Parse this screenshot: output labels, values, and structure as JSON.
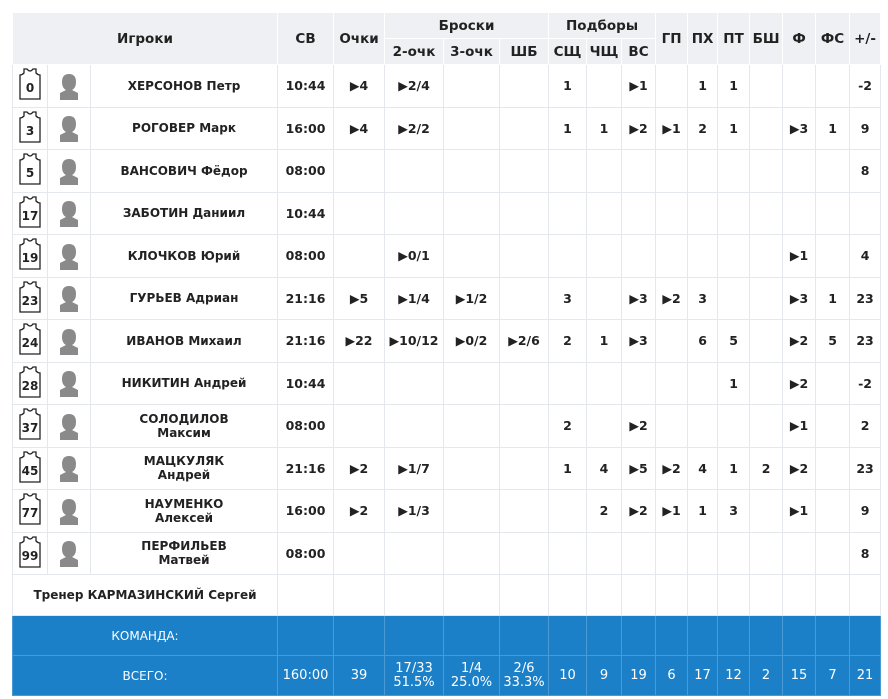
{
  "header": {
    "players": "Игроки",
    "time": "СВ",
    "points": "Очки",
    "shots": "Броски",
    "shots_sub": [
      "2-очк",
      "3-очк",
      "ШБ"
    ],
    "rebounds": "Подборы",
    "rebounds_sub": [
      "СЩ",
      "ЧЩ",
      "ВС"
    ],
    "other": [
      "ГП",
      "ПХ",
      "ПТ",
      "БШ",
      "Ф",
      "ФС",
      "+/-"
    ]
  },
  "rows": [
    {
      "number": "0",
      "name": [
        "ХЕРСОНОВ Петр"
      ],
      "cells": [
        "10:44",
        "▶4",
        "▶2/4",
        null,
        null,
        "1",
        null,
        "▶1",
        null,
        "1",
        "1",
        null,
        null,
        null,
        "-2"
      ]
    },
    {
      "number": "3",
      "name": [
        "РОГОВЕР Марк"
      ],
      "cells": [
        "16:00",
        "▶4",
        "▶2/2",
        null,
        null,
        "1",
        "1",
        "▶2",
        "▶1",
        "2",
        "1",
        null,
        "▶3",
        "1",
        "9"
      ]
    },
    {
      "number": "5",
      "name": [
        "ВАНСОВИЧ Фёдор"
      ],
      "cells": [
        "08:00",
        null,
        null,
        null,
        null,
        null,
        null,
        null,
        null,
        null,
        null,
        null,
        null,
        null,
        "8"
      ]
    },
    {
      "number": "17",
      "name": [
        "ЗАБОТИН Даниил"
      ],
      "cells": [
        "10:44",
        null,
        null,
        null,
        null,
        null,
        null,
        null,
        null,
        null,
        null,
        null,
        null,
        null,
        null
      ]
    },
    {
      "number": "19",
      "name": [
        "КЛОЧКОВ Юрий"
      ],
      "cells": [
        "08:00",
        null,
        "▶0/1",
        null,
        null,
        null,
        null,
        null,
        null,
        null,
        null,
        null,
        "▶1",
        null,
        "4"
      ]
    },
    {
      "number": "23",
      "name": [
        "ГУРЬЕВ Адриан"
      ],
      "cells": [
        "21:16",
        "▶5",
        "▶1/4",
        "▶1/2",
        null,
        "3",
        null,
        "▶3",
        "▶2",
        "3",
        null,
        null,
        "▶3",
        "1",
        "23"
      ]
    },
    {
      "number": "24",
      "name": [
        "ИВАНОВ Михаил"
      ],
      "cells": [
        "21:16",
        "▶22",
        "▶10/12",
        "▶0/2",
        "▶2/6",
        "2",
        "1",
        "▶3",
        null,
        "6",
        "5",
        null,
        "▶2",
        "5",
        "23"
      ]
    },
    {
      "number": "28",
      "name": [
        "НИКИТИН Андрей"
      ],
      "cells": [
        "10:44",
        null,
        null,
        null,
        null,
        null,
        null,
        null,
        null,
        null,
        "1",
        null,
        "▶2",
        null,
        "-2"
      ]
    },
    {
      "number": "37",
      "name": [
        "СОЛОДИЛОВ",
        "Максим"
      ],
      "cells": [
        "08:00",
        null,
        null,
        null,
        null,
        "2",
        null,
        "▶2",
        null,
        null,
        null,
        null,
        "▶1",
        null,
        "2"
      ]
    },
    {
      "number": "45",
      "name": [
        "МАЦКУЛЯК",
        "Андрей"
      ],
      "cells": [
        "21:16",
        "▶2",
        "▶1/7",
        null,
        null,
        "1",
        "4",
        "▶5",
        "▶2",
        "4",
        "1",
        "2",
        "▶2",
        null,
        "23"
      ]
    },
    {
      "number": "77",
      "name": [
        "НАУМЕНКО",
        "Алексей"
      ],
      "cells": [
        "16:00",
        "▶2",
        "▶1/3",
        null,
        null,
        null,
        "2",
        "▶2",
        "▶1",
        "1",
        "3",
        null,
        "▶1",
        null,
        "9"
      ]
    },
    {
      "number": "99",
      "name": [
        "ПЕРФИЛЬЕВ",
        "Матвей"
      ],
      "cells": [
        "08:00",
        null,
        null,
        null,
        null,
        null,
        null,
        null,
        null,
        null,
        null,
        null,
        null,
        null,
        "8"
      ]
    }
  ],
  "coach": "Тренер КАРМАЗИНСКИЙ Сергей",
  "team": {
    "label": "КОМАНДА:"
  },
  "total": {
    "label": "ВСЕГО:",
    "cells": [
      [
        "160:00"
      ],
      [
        "39"
      ],
      [
        "17/33",
        "51.5%"
      ],
      [
        "1/4",
        "25.0%"
      ],
      [
        "2/6",
        "33.3%"
      ],
      [
        "10"
      ],
      [
        "9"
      ],
      [
        "19"
      ],
      [
        "6"
      ],
      [
        "17"
      ],
      [
        "12"
      ],
      [
        "2"
      ],
      [
        "15"
      ],
      [
        "7"
      ],
      [
        "21"
      ]
    ]
  }
}
